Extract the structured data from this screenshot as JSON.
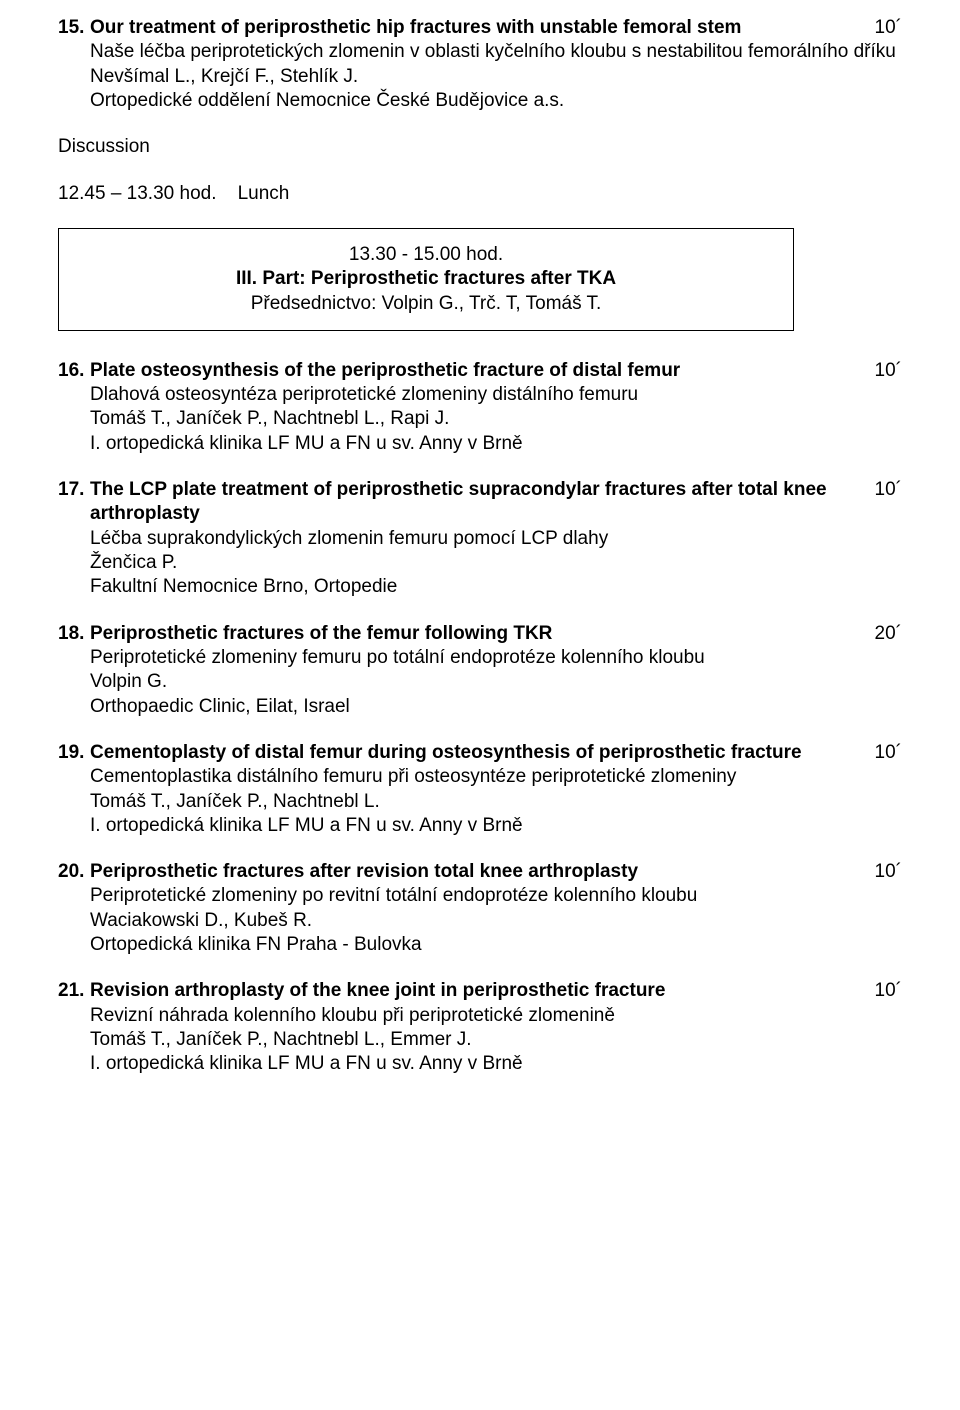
{
  "entries": [
    {
      "num": "15.",
      "title": "Our treatment of periprosthetic hip fractures with unstable femoral stem",
      "duration": "10´",
      "lines": [
        "Naše léčba periprotetických zlomenin v oblasti kyčelního kloubu s nestabilitou femorálního dříku",
        "Nevšímal L., Krejčí F., Stehlík J.",
        "Ortopedické oddělení Nemocnice České Budějovice a.s."
      ]
    }
  ],
  "discussion": "Discussion",
  "lunch": "12.45 – 13.30 hod.    Lunch",
  "session": {
    "time": "13.30 - 15.00 hod.",
    "title": "III. Part: Periprosthetic fractures after TKA",
    "chair": "Předsednictvo: Volpin G., Trč. T, Tomáš T."
  },
  "entries2": [
    {
      "num": "16.",
      "title": "Plate osteosynthesis of the periprosthetic fracture of distal femur",
      "duration": "10´",
      "lines": [
        "Dlahová osteosyntéza periprotetické zlomeniny distálního femuru",
        "Tomáš T., Janíček P., Nachtnebl L., Rapi J.",
        "I. ortopedická klinika LF MU a FN u sv. Anny v Brně"
      ]
    },
    {
      "num": "17.",
      "title": "The LCP plate treatment of periprosthetic supracondylar fractures after total knee arthroplasty",
      "duration": "10´",
      "lines": [
        "Léčba suprakondylických zlomenin femuru pomocí LCP dlahy",
        "Ženčica P.",
        "Fakultní Nemocnice Brno, Ortopedie"
      ]
    },
    {
      "num": "18.",
      "title": "Periprosthetic fractures of the femur following TKR",
      "duration": "20´",
      "lines": [
        "Periprotetické zlomeniny femuru po totální endoprotéze kolenního kloubu",
        "Volpin G.",
        "Orthopaedic Clinic, Eilat, Israel"
      ]
    },
    {
      "num": "19.",
      "title": "Cementoplasty of distal femur during osteosynthesis of periprosthetic fracture",
      "duration": "10´",
      "lines": [
        "Cementoplastika distálního femuru při osteosyntéze periprotetické zlomeniny",
        "Tomáš T., Janíček P., Nachtnebl L.",
        "I. ortopedická klinika LF MU a FN u sv. Anny v Brně"
      ]
    },
    {
      "num": "20.",
      "title": "Periprosthetic fractures after revision total knee arthroplasty",
      "duration": "10´",
      "lines": [
        "Periprotetické zlomeniny po revitní totální endoprotéze kolenního kloubu",
        "Waciakowski D., Kubeš R.",
        "Ortopedická klinika FN Praha - Bulovka"
      ]
    },
    {
      "num": "21.",
      "title": "Revision arthroplasty of the knee joint in periprosthetic fracture",
      "duration": "10´",
      "lines": [
        "Revizní náhrada kolenního kloubu při periprotetické zlomenině",
        "Tomáš T., Janíček P., Nachtnebl L., Emmer J.",
        "I. ortopedická klinika LF MU a FN u sv. Anny v Brně"
      ]
    }
  ]
}
